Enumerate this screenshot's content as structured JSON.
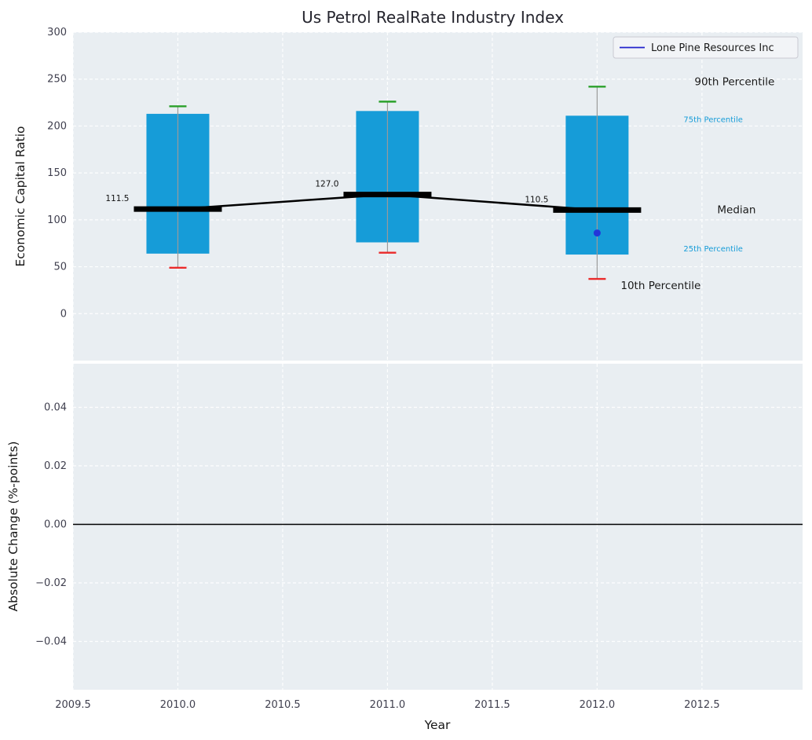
{
  "figure": {
    "title": "Us Petrol RealRate Industry Index"
  },
  "chart_data": [
    {
      "type": "bar",
      "subtype": "percentile-box-timeseries",
      "title": "Us Petrol RealRate Industry Index",
      "ylabel": "Economic Capital Ratio",
      "ylim": [
        -50,
        300
      ],
      "yticks": {
        "values": [
          0,
          50,
          100,
          150,
          200,
          250,
          300
        ],
        "labels": [
          "0",
          "50",
          "100",
          "150",
          "200",
          "250",
          "300"
        ]
      },
      "xlim": [
        2009.5,
        2012.98
      ],
      "grid": true,
      "legend": {
        "position": "upper right",
        "entries": [
          {
            "label": "Lone Pine Resources Inc",
            "color": "#2222cc",
            "marker": "line"
          }
        ]
      },
      "categories": [
        2010,
        2011,
        2012
      ],
      "series": [
        {
          "year": 2010,
          "p10": 49,
          "p25": 64,
          "median": 111.5,
          "p75": 213,
          "p90": 221
        },
        {
          "year": 2011,
          "p10": 65,
          "p25": 76,
          "median": 127.0,
          "p75": 216,
          "p90": 226
        },
        {
          "year": 2012,
          "p10": 37,
          "p25": 63,
          "median": 110.5,
          "p75": 211,
          "p90": 242
        }
      ],
      "median_annotations": [
        "111.5",
        "127.0",
        "110.5"
      ],
      "company_point": {
        "name": "Lone Pine Resources Inc",
        "year": 2012,
        "value": 86,
        "color": "#2336d9"
      },
      "percentile_labels": [
        {
          "stat": "p90",
          "text": "90th Percentile",
          "style": "large",
          "color": "#1a1a1a"
        },
        {
          "stat": "p75",
          "text": "75th Percentile",
          "style": "small",
          "color": "#169cd8"
        },
        {
          "stat": "median",
          "text": "Median",
          "style": "large",
          "color": "#1a1a1a"
        },
        {
          "stat": "p25",
          "text": "25th Percentile",
          "style": "small",
          "color": "#169cd8"
        },
        {
          "stat": "p10",
          "text": "10th Percentile",
          "style": "large",
          "color": "#1a1a1a"
        }
      ],
      "colors": {
        "bar": "#169cd8",
        "p90_tick": "#2ba12b",
        "p10_tick": "#ea2a2a",
        "whisker": "#9a9a9a",
        "median": "#000000",
        "background": "#e9eef2",
        "grid": "#ffffff"
      }
    },
    {
      "type": "line",
      "ylabel": "Absolute Change (%-points)",
      "xlabel": "Year",
      "ylim": [
        -0.0565,
        0.0549
      ],
      "yticks": {
        "values": [
          0.04,
          0.02,
          0,
          -0.02,
          -0.04
        ],
        "labels": [
          "0.04",
          "0.02",
          "0.00",
          "−0.02",
          "−0.04"
        ]
      },
      "xticks": {
        "values": [
          2009.5,
          2010,
          2010.5,
          2011,
          2011.5,
          2012,
          2012.5
        ],
        "labels": [
          "2009.5",
          "2010.0",
          "2010.5",
          "2011.0",
          "2011.5",
          "2012.0",
          "2012.5"
        ]
      },
      "xlim": [
        2009.5,
        2012.98
      ],
      "zero_line": true,
      "series": [],
      "grid": true,
      "colors": {
        "background": "#e9eef2",
        "grid": "#ffffff",
        "zero_line": "#000000"
      }
    }
  ]
}
